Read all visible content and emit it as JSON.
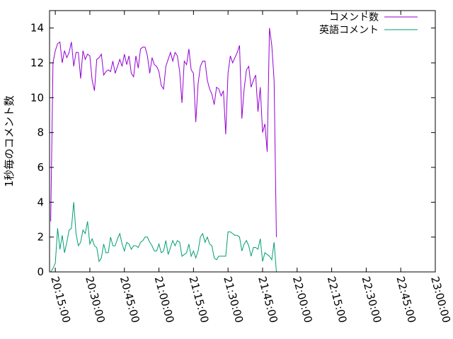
{
  "chart_data": {
    "type": "line",
    "title": "",
    "xlabel": "",
    "ylabel": "1秒毎のコメント数",
    "x_axis": {
      "type": "time",
      "range": [
        "20:12:30",
        "23:00:00"
      ],
      "ticks": [
        "20:15:00",
        "20:30:00",
        "20:45:00",
        "21:00:00",
        "21:15:00",
        "21:30:00",
        "21:45:00",
        "22:00:00",
        "22:15:00",
        "22:30:00",
        "22:45:00",
        "23:00:00"
      ],
      "tick_label_rotation_deg": 75
    },
    "y_axis": {
      "range": [
        0,
        15
      ],
      "ticks": [
        "0",
        "2",
        "4",
        "6",
        "8",
        "10",
        "12",
        "14"
      ]
    },
    "grid": false,
    "legend_placement": "top-right",
    "series": [
      {
        "name": "コメント数",
        "color": "#9400d3",
        "points": [
          [
            "20:13:00",
            2.9
          ],
          [
            "20:14:00",
            12.0
          ],
          [
            "20:15:00",
            12.7
          ],
          [
            "20:16:00",
            13.1
          ],
          [
            "20:17:00",
            13.2
          ],
          [
            "20:18:00",
            12.0
          ],
          [
            "20:19:00",
            12.7
          ],
          [
            "20:20:00",
            12.3
          ],
          [
            "20:21:00",
            12.6
          ],
          [
            "20:22:00",
            13.2
          ],
          [
            "20:23:00",
            11.8
          ],
          [
            "20:24:00",
            12.6
          ],
          [
            "20:25:00",
            12.6
          ],
          [
            "20:26:00",
            11.1
          ],
          [
            "20:27:00",
            12.7
          ],
          [
            "20:28:00",
            12.2
          ],
          [
            "20:29:00",
            12.5
          ],
          [
            "20:30:00",
            12.4
          ],
          [
            "20:31:00",
            11.0
          ],
          [
            "20:32:00",
            10.4
          ],
          [
            "20:33:00",
            12.2
          ],
          [
            "20:34:00",
            12.3
          ],
          [
            "20:35:00",
            12.5
          ],
          [
            "20:36:00",
            11.3
          ],
          [
            "20:37:00",
            11.5
          ],
          [
            "20:38:00",
            11.6
          ],
          [
            "20:39:00",
            11.5
          ],
          [
            "20:40:00",
            12.1
          ],
          [
            "20:41:00",
            11.4
          ],
          [
            "20:42:00",
            11.8
          ],
          [
            "20:43:00",
            12.2
          ],
          [
            "20:44:00",
            11.8
          ],
          [
            "20:45:00",
            12.5
          ],
          [
            "20:46:00",
            11.9
          ],
          [
            "20:47:00",
            12.4
          ],
          [
            "20:48:00",
            11.4
          ],
          [
            "20:49:00",
            11.2
          ],
          [
            "20:50:00",
            12.4
          ],
          [
            "20:51:00",
            11.7
          ],
          [
            "20:52:00",
            12.8
          ],
          [
            "20:53:00",
            12.9
          ],
          [
            "20:54:00",
            12.9
          ],
          [
            "20:55:00",
            12.4
          ],
          [
            "20:56:00",
            11.4
          ],
          [
            "20:57:00",
            12.3
          ],
          [
            "20:58:00",
            11.9
          ],
          [
            "20:59:00",
            11.8
          ],
          [
            "21:00:00",
            11.5
          ],
          [
            "21:01:00",
            10.7
          ],
          [
            "21:02:00",
            10.5
          ],
          [
            "21:03:00",
            11.8
          ],
          [
            "21:04:00",
            12.2
          ],
          [
            "21:05:00",
            12.6
          ],
          [
            "21:06:00",
            12.1
          ],
          [
            "21:07:00",
            12.6
          ],
          [
            "21:08:00",
            12.4
          ],
          [
            "21:09:00",
            11.5
          ],
          [
            "21:10:00",
            9.7
          ],
          [
            "21:11:00",
            12.1
          ],
          [
            "21:12:00",
            11.9
          ],
          [
            "21:13:00",
            12.8
          ],
          [
            "21:14:00",
            11.6
          ],
          [
            "21:15:00",
            11.4
          ],
          [
            "21:16:00",
            8.6
          ],
          [
            "21:17:00",
            10.8
          ],
          [
            "21:18:00",
            11.8
          ],
          [
            "21:19:00",
            12.1
          ],
          [
            "21:20:00",
            12.1
          ],
          [
            "21:21:00",
            11.0
          ],
          [
            "21:22:00",
            10.5
          ],
          [
            "21:23:00",
            10.2
          ],
          [
            "21:24:00",
            9.6
          ],
          [
            "21:25:00",
            10.6
          ],
          [
            "21:26:00",
            10.5
          ],
          [
            "21:27:00",
            10.1
          ],
          [
            "21:28:00",
            10.4
          ],
          [
            "21:29:00",
            7.9
          ],
          [
            "21:30:00",
            11.4
          ],
          [
            "21:31:00",
            12.4
          ],
          [
            "21:32:00",
            12.0
          ],
          [
            "21:33:00",
            12.3
          ],
          [
            "21:34:00",
            12.6
          ],
          [
            "21:35:00",
            13.0
          ],
          [
            "21:36:00",
            8.8
          ],
          [
            "21:37:00",
            10.5
          ],
          [
            "21:38:00",
            11.6
          ],
          [
            "21:39:00",
            11.8
          ],
          [
            "21:40:00",
            10.6
          ],
          [
            "21:41:00",
            11.0
          ],
          [
            "21:42:00",
            11.3
          ],
          [
            "21:43:00",
            9.2
          ],
          [
            "21:44:00",
            10.6
          ],
          [
            "21:45:00",
            8.0
          ],
          [
            "21:46:00",
            8.5
          ],
          [
            "21:47:00",
            6.9
          ],
          [
            "21:48:00",
            14.0
          ],
          [
            "21:49:00",
            13.0
          ],
          [
            "21:50:00",
            11.0
          ],
          [
            "21:51:00",
            2.0
          ]
        ]
      },
      {
        "name": "英語コメント",
        "color": "#009e73",
        "points": [
          [
            "20:13:00",
            0.0
          ],
          [
            "20:14:00",
            0.2
          ],
          [
            "20:15:00",
            0.5
          ],
          [
            "20:16:00",
            2.5
          ],
          [
            "20:17:00",
            1.3
          ],
          [
            "20:18:00",
            2.1
          ],
          [
            "20:19:00",
            1.1
          ],
          [
            "20:20:00",
            1.7
          ],
          [
            "20:21:00",
            2.4
          ],
          [
            "20:22:00",
            2.5
          ],
          [
            "20:23:00",
            4.0
          ],
          [
            "20:24:00",
            2.2
          ],
          [
            "20:25:00",
            1.5
          ],
          [
            "20:26:00",
            1.7
          ],
          [
            "20:27:00",
            2.4
          ],
          [
            "20:28:00",
            2.2
          ],
          [
            "20:29:00",
            2.9
          ],
          [
            "20:30:00",
            1.6
          ],
          [
            "20:31:00",
            1.9
          ],
          [
            "20:32:00",
            1.5
          ],
          [
            "20:33:00",
            1.4
          ],
          [
            "20:34:00",
            0.6
          ],
          [
            "20:35:00",
            0.8
          ],
          [
            "20:36:00",
            1.6
          ],
          [
            "20:37:00",
            1.1
          ],
          [
            "20:38:00",
            1.1
          ],
          [
            "20:39:00",
            2.0
          ],
          [
            "20:40:00",
            1.5
          ],
          [
            "20:41:00",
            1.5
          ],
          [
            "20:42:00",
            1.9
          ],
          [
            "20:43:00",
            2.2
          ],
          [
            "20:44:00",
            1.6
          ],
          [
            "20:45:00",
            1.2
          ],
          [
            "20:46:00",
            1.7
          ],
          [
            "20:47:00",
            1.6
          ],
          [
            "20:48:00",
            1.3
          ],
          [
            "20:49:00",
            1.5
          ],
          [
            "20:50:00",
            1.5
          ],
          [
            "20:51:00",
            1.4
          ],
          [
            "20:52:00",
            1.7
          ],
          [
            "20:53:00",
            1.8
          ],
          [
            "20:54:00",
            2.0
          ],
          [
            "20:55:00",
            2.0
          ],
          [
            "20:56:00",
            1.7
          ],
          [
            "20:57:00",
            1.5
          ],
          [
            "20:58:00",
            1.2
          ],
          [
            "20:59:00",
            1.2
          ],
          [
            "21:00:00",
            1.6
          ],
          [
            "21:01:00",
            1.1
          ],
          [
            "21:02:00",
            1.2
          ],
          [
            "21:03:00",
            1.8
          ],
          [
            "21:04:00",
            1.0
          ],
          [
            "21:05:00",
            1.4
          ],
          [
            "21:06:00",
            1.8
          ],
          [
            "21:07:00",
            1.5
          ],
          [
            "21:08:00",
            1.8
          ],
          [
            "21:09:00",
            1.7
          ],
          [
            "21:10:00",
            0.9
          ],
          [
            "21:11:00",
            1.0
          ],
          [
            "21:12:00",
            1.1
          ],
          [
            "21:13:00",
            1.6
          ],
          [
            "21:14:00",
            0.9
          ],
          [
            "21:15:00",
            1.2
          ],
          [
            "21:16:00",
            0.8
          ],
          [
            "21:17:00",
            1.2
          ],
          [
            "21:18:00",
            2.0
          ],
          [
            "21:19:00",
            2.2
          ],
          [
            "21:20:00",
            1.7
          ],
          [
            "21:21:00",
            2.0
          ],
          [
            "21:22:00",
            1.6
          ],
          [
            "21:23:00",
            1.5
          ],
          [
            "21:24:00",
            0.8
          ],
          [
            "21:25:00",
            0.7
          ],
          [
            "21:26:00",
            0.9
          ],
          [
            "21:27:00",
            0.9
          ],
          [
            "21:28:00",
            0.9
          ],
          [
            "21:29:00",
            0.9
          ],
          [
            "21:30:00",
            2.3
          ],
          [
            "21:31:00",
            2.3
          ],
          [
            "21:32:00",
            2.2
          ],
          [
            "21:33:00",
            2.1
          ],
          [
            "21:34:00",
            2.1
          ],
          [
            "21:35:00",
            2.0
          ],
          [
            "21:36:00",
            1.2
          ],
          [
            "21:37:00",
            1.6
          ],
          [
            "21:38:00",
            1.8
          ],
          [
            "21:39:00",
            1.5
          ],
          [
            "21:40:00",
            0.9
          ],
          [
            "21:41:00",
            1.4
          ],
          [
            "21:42:00",
            1.4
          ],
          [
            "21:43:00",
            1.3
          ],
          [
            "21:44:00",
            1.9
          ],
          [
            "21:45:00",
            0.6
          ],
          [
            "21:46:00",
            1.1
          ],
          [
            "21:47:00",
            1.0
          ],
          [
            "21:48:00",
            0.9
          ],
          [
            "21:49:00",
            0.7
          ],
          [
            "21:50:00",
            1.7
          ],
          [
            "21:51:00",
            0.0
          ]
        ]
      }
    ]
  }
}
